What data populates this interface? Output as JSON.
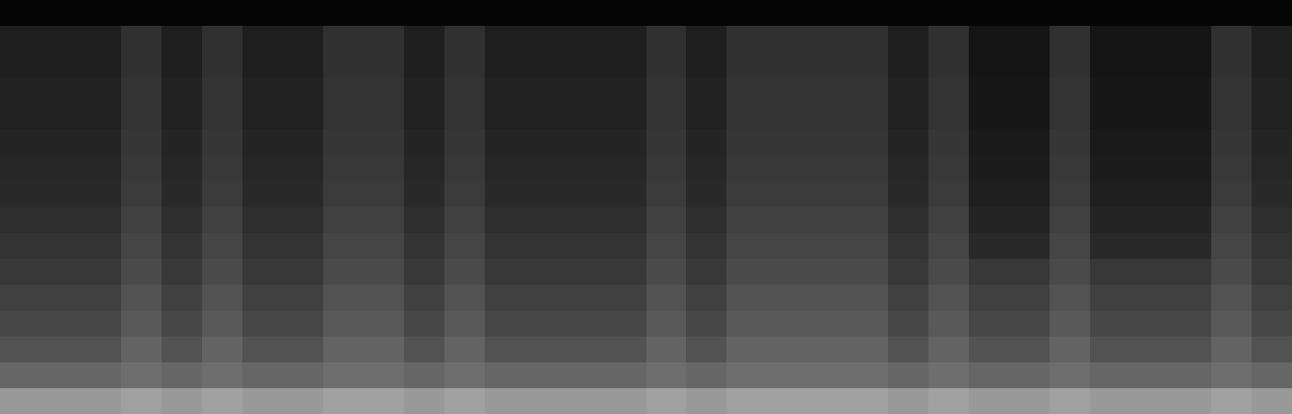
{
  "chart_data": {
    "type": "heatmap",
    "tick_labels": false,
    "zlim": [
      0,
      1
    ],
    "z": [
      [
        0.02,
        0.02,
        0.02,
        0.02,
        0.02,
        0.02,
        0.02,
        0.02,
        0.02,
        0.02,
        0.02,
        0.02,
        0.02,
        0.02,
        0.02,
        0.02,
        0.02,
        0.02,
        0.02,
        0.02,
        0.02,
        0.02,
        0.02,
        0.02,
        0.02,
        0.02,
        0.02,
        0.02,
        0.02,
        0.02,
        0.02,
        0.02
      ],
      [
        0.12,
        0.12,
        0.12,
        0.19,
        0.12,
        0.19,
        0.12,
        0.12,
        0.19,
        0.19,
        0.12,
        0.19,
        0.12,
        0.12,
        0.12,
        0.12,
        0.19,
        0.12,
        0.19,
        0.19,
        0.19,
        0.19,
        0.12,
        0.19,
        0.08,
        0.08,
        0.19,
        0.08,
        0.08,
        0.08,
        0.19,
        0.12
      ],
      [
        0.12,
        0.12,
        0.12,
        0.19,
        0.12,
        0.19,
        0.12,
        0.12,
        0.19,
        0.19,
        0.12,
        0.19,
        0.12,
        0.12,
        0.12,
        0.12,
        0.19,
        0.12,
        0.19,
        0.19,
        0.19,
        0.19,
        0.12,
        0.19,
        0.08,
        0.08,
        0.19,
        0.08,
        0.08,
        0.08,
        0.19,
        0.12
      ],
      [
        0.13,
        0.13,
        0.13,
        0.2,
        0.13,
        0.2,
        0.13,
        0.13,
        0.2,
        0.2,
        0.13,
        0.2,
        0.13,
        0.13,
        0.13,
        0.13,
        0.2,
        0.13,
        0.2,
        0.2,
        0.2,
        0.2,
        0.13,
        0.2,
        0.09,
        0.09,
        0.2,
        0.09,
        0.09,
        0.09,
        0.2,
        0.13
      ],
      [
        0.13,
        0.13,
        0.13,
        0.2,
        0.13,
        0.2,
        0.13,
        0.13,
        0.2,
        0.2,
        0.13,
        0.2,
        0.13,
        0.13,
        0.13,
        0.13,
        0.2,
        0.13,
        0.2,
        0.2,
        0.2,
        0.2,
        0.13,
        0.2,
        0.09,
        0.09,
        0.2,
        0.09,
        0.09,
        0.09,
        0.2,
        0.13
      ],
      [
        0.14,
        0.14,
        0.14,
        0.21,
        0.14,
        0.21,
        0.14,
        0.14,
        0.21,
        0.21,
        0.14,
        0.21,
        0.14,
        0.14,
        0.14,
        0.14,
        0.21,
        0.14,
        0.21,
        0.21,
        0.21,
        0.21,
        0.14,
        0.21,
        0.1,
        0.1,
        0.21,
        0.1,
        0.1,
        0.1,
        0.21,
        0.14
      ],
      [
        0.15,
        0.15,
        0.15,
        0.22,
        0.15,
        0.22,
        0.15,
        0.15,
        0.22,
        0.22,
        0.15,
        0.22,
        0.15,
        0.15,
        0.15,
        0.15,
        0.22,
        0.15,
        0.22,
        0.22,
        0.22,
        0.22,
        0.15,
        0.22,
        0.11,
        0.11,
        0.22,
        0.11,
        0.11,
        0.11,
        0.22,
        0.15
      ],
      [
        0.16,
        0.16,
        0.16,
        0.23,
        0.16,
        0.23,
        0.16,
        0.16,
        0.23,
        0.23,
        0.16,
        0.23,
        0.16,
        0.16,
        0.16,
        0.16,
        0.23,
        0.16,
        0.23,
        0.23,
        0.23,
        0.23,
        0.16,
        0.23,
        0.12,
        0.12,
        0.23,
        0.12,
        0.12,
        0.12,
        0.23,
        0.16
      ],
      [
        0.18,
        0.18,
        0.18,
        0.25,
        0.18,
        0.25,
        0.18,
        0.18,
        0.25,
        0.25,
        0.18,
        0.25,
        0.18,
        0.18,
        0.18,
        0.18,
        0.25,
        0.18,
        0.25,
        0.25,
        0.25,
        0.25,
        0.18,
        0.25,
        0.14,
        0.14,
        0.25,
        0.14,
        0.14,
        0.14,
        0.25,
        0.18
      ],
      [
        0.2,
        0.2,
        0.2,
        0.27,
        0.2,
        0.27,
        0.2,
        0.2,
        0.27,
        0.27,
        0.2,
        0.27,
        0.2,
        0.2,
        0.2,
        0.2,
        0.27,
        0.2,
        0.27,
        0.27,
        0.27,
        0.27,
        0.2,
        0.27,
        0.16,
        0.16,
        0.27,
        0.16,
        0.16,
        0.16,
        0.27,
        0.2
      ],
      [
        0.22,
        0.22,
        0.22,
        0.29,
        0.22,
        0.29,
        0.22,
        0.22,
        0.29,
        0.29,
        0.22,
        0.29,
        0.22,
        0.22,
        0.22,
        0.22,
        0.29,
        0.22,
        0.29,
        0.29,
        0.29,
        0.29,
        0.22,
        0.29,
        0.22,
        0.22,
        0.29,
        0.22,
        0.22,
        0.22,
        0.29,
        0.22
      ],
      [
        0.25,
        0.25,
        0.25,
        0.32,
        0.25,
        0.32,
        0.25,
        0.25,
        0.32,
        0.32,
        0.25,
        0.32,
        0.25,
        0.25,
        0.25,
        0.25,
        0.32,
        0.25,
        0.32,
        0.32,
        0.32,
        0.32,
        0.25,
        0.32,
        0.25,
        0.25,
        0.32,
        0.25,
        0.25,
        0.25,
        0.32,
        0.25
      ],
      [
        0.28,
        0.28,
        0.28,
        0.35,
        0.28,
        0.35,
        0.28,
        0.28,
        0.35,
        0.35,
        0.28,
        0.35,
        0.28,
        0.28,
        0.28,
        0.28,
        0.35,
        0.28,
        0.35,
        0.35,
        0.35,
        0.35,
        0.28,
        0.35,
        0.28,
        0.28,
        0.35,
        0.28,
        0.28,
        0.28,
        0.35,
        0.28
      ],
      [
        0.32,
        0.32,
        0.32,
        0.39,
        0.32,
        0.39,
        0.32,
        0.32,
        0.39,
        0.39,
        0.32,
        0.39,
        0.32,
        0.32,
        0.32,
        0.32,
        0.39,
        0.32,
        0.39,
        0.39,
        0.39,
        0.39,
        0.32,
        0.39,
        0.32,
        0.32,
        0.39,
        0.32,
        0.32,
        0.32,
        0.39,
        0.32
      ],
      [
        0.4,
        0.4,
        0.4,
        0.43,
        0.4,
        0.43,
        0.4,
        0.4,
        0.43,
        0.43,
        0.4,
        0.43,
        0.4,
        0.4,
        0.4,
        0.4,
        0.43,
        0.4,
        0.43,
        0.43,
        0.43,
        0.43,
        0.4,
        0.43,
        0.4,
        0.4,
        0.43,
        0.4,
        0.4,
        0.4,
        0.43,
        0.4
      ],
      [
        0.6,
        0.6,
        0.6,
        0.63,
        0.6,
        0.63,
        0.6,
        0.6,
        0.63,
        0.63,
        0.6,
        0.63,
        0.6,
        0.6,
        0.6,
        0.6,
        0.63,
        0.6,
        0.63,
        0.63,
        0.63,
        0.63,
        0.6,
        0.63,
        0.6,
        0.6,
        0.63,
        0.6,
        0.6,
        0.6,
        0.63,
        0.6
      ]
    ]
  }
}
